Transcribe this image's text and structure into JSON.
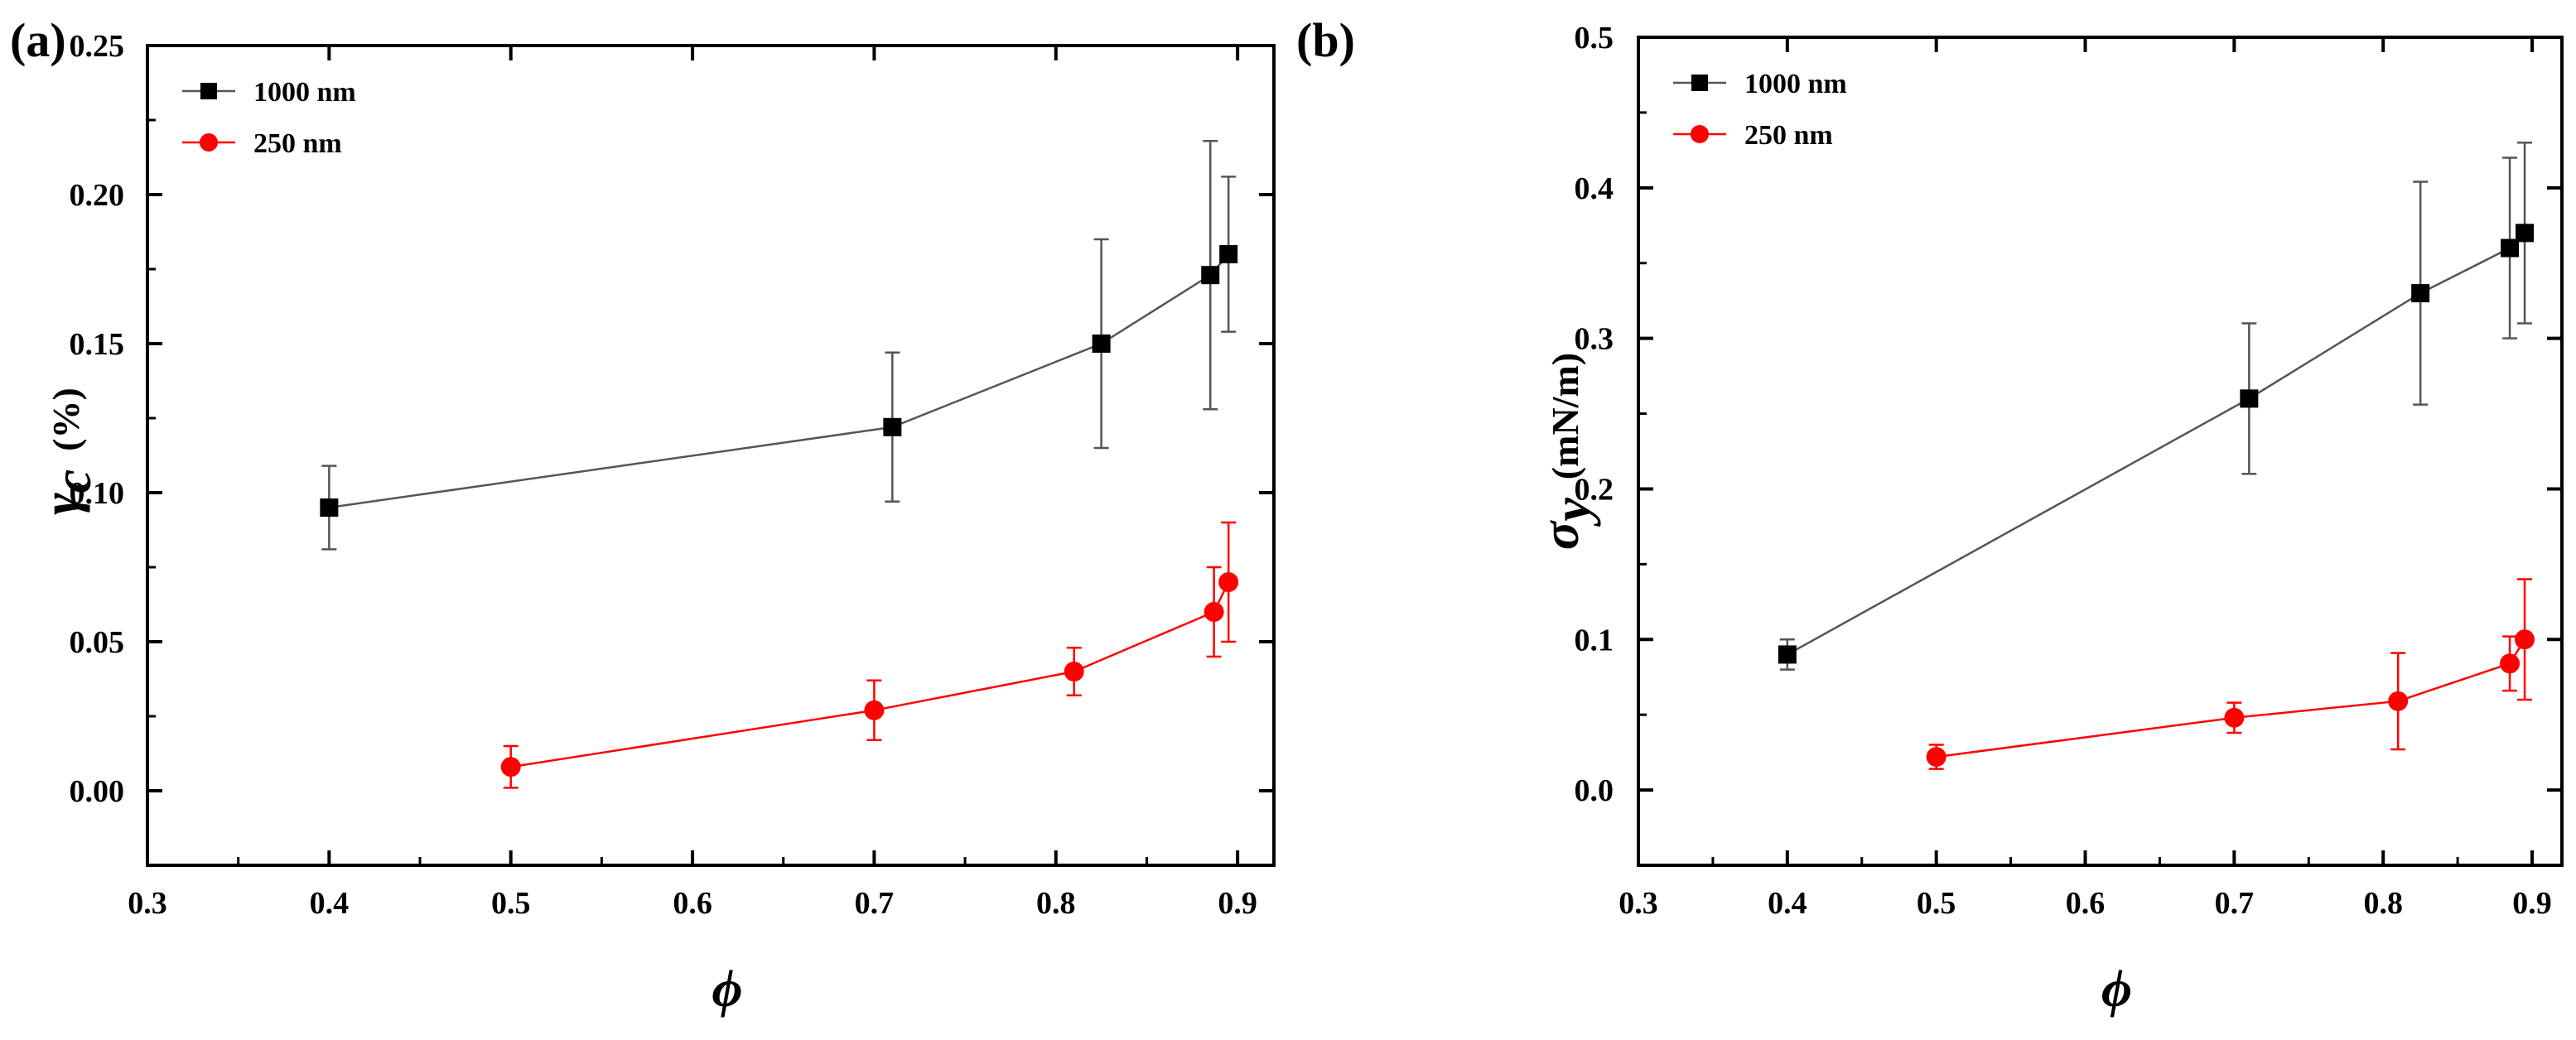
{
  "chart_data": [
    {
      "type": "line",
      "panel_label": "(a)",
      "xlabel": "ϕ",
      "ylabel_symbol": "γ",
      "ylabel_subscript": "c",
      "ylabel_unit": "(%)",
      "xlim": [
        0.3,
        0.92
      ],
      "ylim": [
        -0.025,
        0.25
      ],
      "x_ticks": [
        0.3,
        0.4,
        0.5,
        0.6,
        0.7,
        0.8,
        0.9
      ],
      "x_tick_labels": [
        "0.3",
        "0.4",
        "0.5",
        "0.6",
        "0.7",
        "0.8",
        "0.9"
      ],
      "y_ticks": [
        0.0,
        0.05,
        0.1,
        0.15,
        0.2,
        0.25
      ],
      "y_tick_labels": [
        "0.00",
        "0.05",
        "0.10",
        "0.15",
        "0.20",
        "0.25"
      ],
      "legend_position": "top-left",
      "series": [
        {
          "name": "1000 nm",
          "color": "#000000",
          "line_color": "#555555",
          "marker": "square",
          "x": [
            0.4,
            0.71,
            0.825,
            0.885,
            0.895
          ],
          "y": [
            0.095,
            0.122,
            0.15,
            0.173,
            0.18
          ],
          "err": [
            0.014,
            0.025,
            0.035,
            0.045,
            0.026
          ]
        },
        {
          "name": "250 nm",
          "color": "#ff0000",
          "line_color": "#ff0000",
          "marker": "circle",
          "x": [
            0.5,
            0.7,
            0.81,
            0.887,
            0.895
          ],
          "y": [
            0.008,
            0.027,
            0.04,
            0.06,
            0.07
          ],
          "err": [
            0.007,
            0.01,
            0.008,
            0.015,
            0.02
          ]
        }
      ]
    },
    {
      "type": "line",
      "panel_label": "(b)",
      "xlabel": "ϕ",
      "ylabel_symbol": "σ",
      "ylabel_subscript": "y",
      "ylabel_unit": "(mN/m)",
      "xlim": [
        0.3,
        0.92
      ],
      "ylim": [
        -0.05,
        0.5
      ],
      "x_ticks": [
        0.3,
        0.4,
        0.5,
        0.6,
        0.7,
        0.8,
        0.9
      ],
      "x_tick_labels": [
        "0.3",
        "0.4",
        "0.5",
        "0.6",
        "0.7",
        "0.8",
        "0.9"
      ],
      "y_ticks": [
        0.0,
        0.1,
        0.2,
        0.3,
        0.4,
        0.5
      ],
      "y_tick_labels": [
        "0.0",
        "0.1",
        "0.2",
        "0.3",
        "0.4",
        "0.5"
      ],
      "legend_position": "top-left",
      "series": [
        {
          "name": "1000 nm",
          "color": "#000000",
          "line_color": "#555555",
          "marker": "square",
          "x": [
            0.4,
            0.71,
            0.825,
            0.885,
            0.895
          ],
          "y": [
            0.09,
            0.26,
            0.33,
            0.36,
            0.37
          ],
          "err": [
            0.01,
            0.05,
            0.074,
            0.06,
            0.06
          ]
        },
        {
          "name": "250 nm",
          "color": "#ff0000",
          "line_color": "#ff0000",
          "marker": "circle",
          "x": [
            0.5,
            0.7,
            0.81,
            0.885,
            0.895
          ],
          "y": [
            0.022,
            0.048,
            0.059,
            0.084,
            0.1
          ],
          "err": [
            0.008,
            0.01,
            0.032,
            0.018,
            0.04
          ]
        }
      ]
    }
  ]
}
